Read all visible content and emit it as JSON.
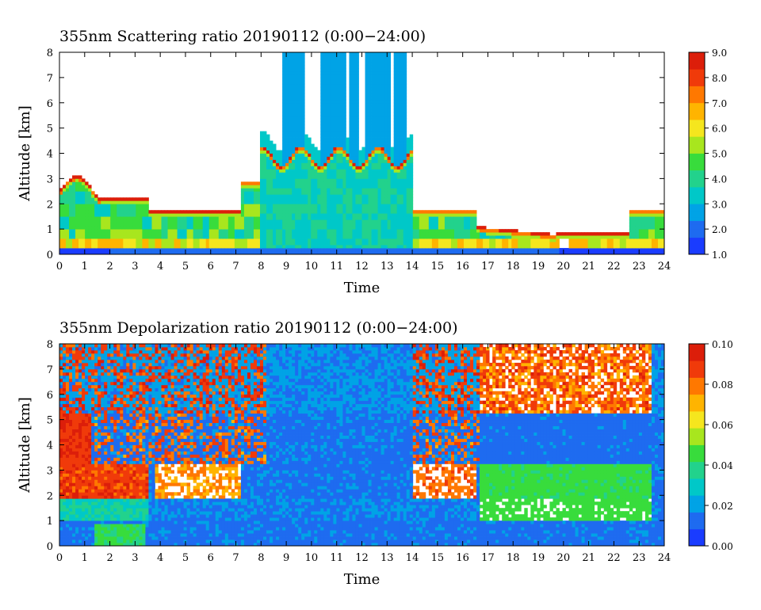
{
  "colors": {
    "colormap": [
      "#1a3cff",
      "#1e6bf0",
      "#00a3e6",
      "#00c8c8",
      "#22d28c",
      "#38dc3c",
      "#a8e61e",
      "#f5e61e",
      "#ffb400",
      "#ff7800",
      "#f03a0a",
      "#dc1e0a"
    ],
    "background": "#ffffff",
    "missing": "#ffffff"
  },
  "chart_data": [
    {
      "type": "heatmap",
      "title": "355nm Scattering ratio  20190112 (0:00−24:00)",
      "xlabel": "Time",
      "ylabel": "Altitude [km]",
      "xlim": [
        0,
        24
      ],
      "ylim": [
        0,
        8
      ],
      "xticks": [
        "0",
        "1",
        "2",
        "3",
        "4",
        "5",
        "6",
        "7",
        "8",
        "9",
        "10",
        "11",
        "12",
        "13",
        "14",
        "15",
        "16",
        "17",
        "18",
        "19",
        "20",
        "21",
        "22",
        "23",
        "24"
      ],
      "yticks": [
        "0",
        "1",
        "2",
        "3",
        "4",
        "5",
        "6",
        "7",
        "8"
      ],
      "colorbar": {
        "range": [
          1.0,
          9.0
        ],
        "ticks": [
          "1.0",
          "2.0",
          "3.0",
          "4.0",
          "5.0",
          "6.0",
          "7.0",
          "8.0",
          "9.0"
        ]
      }
    },
    {
      "type": "heatmap",
      "title": "355nm Depolarization ratio  20190112 (0:00−24:00)",
      "xlabel": "Time",
      "ylabel": "Altitude [km]",
      "xlim": [
        0,
        24
      ],
      "ylim": [
        0,
        8
      ],
      "xticks": [
        "0",
        "1",
        "2",
        "3",
        "4",
        "5",
        "6",
        "7",
        "8",
        "9",
        "10",
        "11",
        "12",
        "13",
        "14",
        "15",
        "16",
        "17",
        "18",
        "19",
        "20",
        "21",
        "22",
        "23",
        "24"
      ],
      "yticks": [
        "0",
        "1",
        "2",
        "3",
        "4",
        "5",
        "6",
        "7",
        "8"
      ],
      "colorbar": {
        "range": [
          0.0,
          0.1
        ],
        "ticks": [
          "0.00",
          "0.02",
          "0.04",
          "0.06",
          "0.08",
          "0.10"
        ]
      }
    }
  ]
}
